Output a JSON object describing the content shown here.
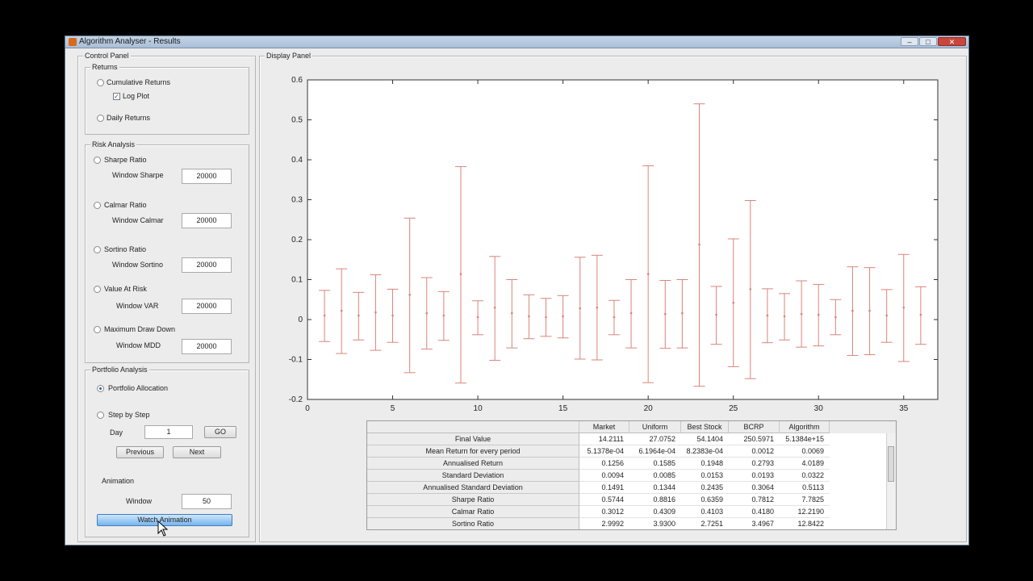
{
  "window": {
    "title": "Algorithm Analyser - Results",
    "buttons": {
      "minimize": "–",
      "maximize": "□",
      "close": "✕"
    }
  },
  "control_panel": {
    "title": "Control Panel",
    "returns": {
      "title": "Returns",
      "cumulative_label": "Cumulative Returns",
      "log_plot_label": "Log Plot",
      "log_plot_checked": true,
      "daily_label": "Daily Returns"
    },
    "risk": {
      "title": "Risk Analysis",
      "items": [
        {
          "label": "Sharpe Ratio",
          "window_label": "Window Sharpe",
          "value": "20000"
        },
        {
          "label": "Calmar Ratio",
          "window_label": "Window Calmar",
          "value": "20000"
        },
        {
          "label": "Sortino Ratio",
          "window_label": "Window Sortino",
          "value": "20000"
        },
        {
          "label": "Value At Risk",
          "window_label": "Window VAR",
          "value": "20000"
        },
        {
          "label": "Maximum Draw Down",
          "window_label": "Window MDD",
          "value": "20000"
        }
      ]
    },
    "portfolio": {
      "title": "Portfolio Analysis",
      "allocation_label": "Portfolio Allocation",
      "allocation_selected": true,
      "step_label": "Step by Step",
      "day_label": "Day",
      "day_value": "1",
      "go_label": "GO",
      "previous_label": "Previous",
      "next_label": "Next",
      "animation_label": "Animation",
      "window_label": "Window",
      "window_value": "50",
      "watch_label": "Watch Animation"
    }
  },
  "display_panel": {
    "title": "Display Panel"
  },
  "colors": {
    "series": "#d9847a",
    "window_bg": "#ececec"
  },
  "chart_data": {
    "type": "errorbar",
    "x": [
      1,
      2,
      3,
      4,
      5,
      6,
      7,
      8,
      9,
      10,
      11,
      12,
      13,
      14,
      15,
      16,
      17,
      18,
      19,
      20,
      21,
      22,
      23,
      24,
      25,
      26,
      27,
      28,
      29,
      30,
      31,
      32,
      33,
      34,
      35,
      36
    ],
    "mean": [
      0.01,
      0.022,
      0.01,
      0.018,
      0.01,
      0.062,
      0.016,
      0.01,
      0.114,
      0.006,
      0.03,
      0.016,
      0.008,
      0.006,
      0.008,
      0.028,
      0.03,
      0.006,
      0.016,
      0.114,
      0.014,
      0.016,
      0.188,
      0.012,
      0.042,
      0.076,
      0.01,
      0.008,
      0.014,
      0.012,
      0.006,
      0.022,
      0.022,
      0.01,
      0.03,
      0.012
    ],
    "upper": [
      0.073,
      0.127,
      0.068,
      0.112,
      0.076,
      0.254,
      0.105,
      0.07,
      0.383,
      0.047,
      0.158,
      0.1,
      0.062,
      0.053,
      0.06,
      0.156,
      0.161,
      0.048,
      0.1,
      0.385,
      0.098,
      0.1,
      0.54,
      0.083,
      0.202,
      0.298,
      0.077,
      0.065,
      0.097,
      0.088,
      0.05,
      0.132,
      0.13,
      0.075,
      0.163,
      0.082
    ],
    "lower": [
      -0.055,
      -0.085,
      -0.051,
      -0.077,
      -0.057,
      -0.133,
      -0.074,
      -0.052,
      -0.159,
      -0.038,
      -0.102,
      -0.071,
      -0.048,
      -0.042,
      -0.046,
      -0.099,
      -0.101,
      -0.038,
      -0.071,
      -0.158,
      -0.072,
      -0.071,
      -0.167,
      -0.062,
      -0.118,
      -0.148,
      -0.058,
      -0.051,
      -0.069,
      -0.066,
      -0.038,
      -0.09,
      -0.088,
      -0.057,
      -0.105,
      -0.062
    ],
    "xlim": [
      0,
      37
    ],
    "ylim": [
      -0.2,
      0.6
    ],
    "xticks": [
      "0",
      "5",
      "10",
      "15",
      "20",
      "25",
      "30",
      "35"
    ],
    "xtick_values": [
      0,
      5,
      10,
      15,
      20,
      25,
      30,
      35
    ],
    "yticks": [
      "-0.2",
      "-0.1",
      "0",
      "0.1",
      "0.2",
      "0.3",
      "0.4",
      "0.5",
      "0.6"
    ],
    "ytick_values": [
      -0.2,
      -0.1,
      0,
      0.1,
      0.2,
      0.3,
      0.4,
      0.5,
      0.6
    ],
    "grid": false
  },
  "results_table": {
    "columns": [
      "Market",
      "Uniform",
      "Best Stock",
      "BCRP",
      "Algorithm"
    ],
    "rows": [
      {
        "label": "Final Value",
        "values": [
          "14.2111",
          "27.0752",
          "54.1404",
          "250.5971",
          "5.1384e+15"
        ]
      },
      {
        "label": "Mean Return for every period",
        "values": [
          "5.1378e-04",
          "6.1964e-04",
          "8.2383e-04",
          "0.0012",
          "0.0069"
        ]
      },
      {
        "label": "Annualised Return",
        "values": [
          "0.1256",
          "0.1585",
          "0.1948",
          "0.2793",
          "4.0189"
        ]
      },
      {
        "label": "Standard Deviation",
        "values": [
          "0.0094",
          "0.0085",
          "0.0153",
          "0.0193",
          "0.0322"
        ]
      },
      {
        "label": "Annualised Standard Deviation",
        "values": [
          "0.1491",
          "0.1344",
          "0.2435",
          "0.3064",
          "0.5113"
        ]
      },
      {
        "label": "Sharpe Ratio",
        "values": [
          "0.5744",
          "0.8816",
          "0.6359",
          "0.7812",
          "7.7825"
        ]
      },
      {
        "label": "Calmar Ratio",
        "values": [
          "0.3012",
          "0.4309",
          "0.4103",
          "0.4180",
          "12.2190"
        ]
      },
      {
        "label": "Sortino Ratio",
        "values": [
          "2.9992",
          "3.9300",
          "2.7251",
          "3.4967",
          "12.8422"
        ]
      }
    ]
  }
}
